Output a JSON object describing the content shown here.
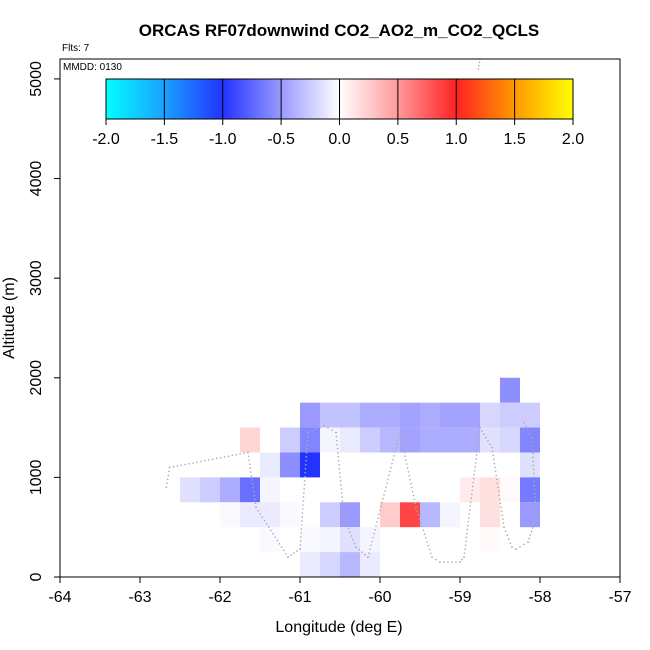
{
  "chart_data": {
    "type": "heatmap",
    "title": "ORCAS RF07downwind CO2_AO2_m_CO2_QCLS",
    "flights_label": "Flts: 7",
    "date_label": "MMDD: 0130",
    "xlabel": "Longitude (deg E)",
    "ylabel": "Altitude (m)",
    "xlim": [
      -64,
      -57
    ],
    "ylim": [
      0,
      5200
    ],
    "xticks": [
      "-64",
      "-63",
      "-62",
      "-61",
      "-60",
      "-59",
      "-58",
      "-57"
    ],
    "yticks": [
      "0",
      "1000",
      "2000",
      "3000",
      "4000",
      "5000"
    ],
    "colorbar": {
      "min": -2.0,
      "max": 2.0,
      "tick_labels": [
        "-2.0",
        "-1.5",
        "-1.0",
        "-0.5",
        "0.0",
        "0.5",
        "1.0",
        "1.5",
        "2.0"
      ],
      "stops": [
        {
          "v": -2.0,
          "color": "#00ffff"
        },
        {
          "v": -1.5,
          "color": "#1aa0ff"
        },
        {
          "v": -1.0,
          "color": "#2233ff"
        },
        {
          "v": -0.5,
          "color": "#9999ff"
        },
        {
          "v": 0.0,
          "color": "#ffffff"
        },
        {
          "v": 0.5,
          "color": "#ff9999"
        },
        {
          "v": 1.0,
          "color": "#ff2222"
        },
        {
          "v": 1.5,
          "color": "#ff9900"
        },
        {
          "v": 2.0,
          "color": "#ffff00"
        }
      ]
    },
    "cell_size": {
      "lon": 0.25,
      "alt": 250
    },
    "cells": [
      {
        "lon": -58.375,
        "alt": 1875,
        "value": -0.55
      },
      {
        "lon": -60.875,
        "alt": 1625,
        "value": -0.5
      },
      {
        "lon": -60.625,
        "alt": 1625,
        "value": -0.3
      },
      {
        "lon": -60.375,
        "alt": 1625,
        "value": -0.3
      },
      {
        "lon": -60.125,
        "alt": 1625,
        "value": -0.4
      },
      {
        "lon": -59.875,
        "alt": 1625,
        "value": -0.4
      },
      {
        "lon": -59.625,
        "alt": 1625,
        "value": -0.45
      },
      {
        "lon": -59.375,
        "alt": 1625,
        "value": -0.4
      },
      {
        "lon": -59.125,
        "alt": 1625,
        "value": -0.45
      },
      {
        "lon": -58.875,
        "alt": 1625,
        "value": -0.45
      },
      {
        "lon": -58.625,
        "alt": 1625,
        "value": -0.2
      },
      {
        "lon": -58.375,
        "alt": 1625,
        "value": -0.25
      },
      {
        "lon": -58.125,
        "alt": 1625,
        "value": -0.25
      },
      {
        "lon": -61.625,
        "alt": 1375,
        "value": 0.2
      },
      {
        "lon": -61.125,
        "alt": 1375,
        "value": -0.25
      },
      {
        "lon": -60.875,
        "alt": 1375,
        "value": -0.6
      },
      {
        "lon": -60.625,
        "alt": 1375,
        "value": -0.05
      },
      {
        "lon": -60.375,
        "alt": 1375,
        "value": -0.1
      },
      {
        "lon": -60.125,
        "alt": 1375,
        "value": -0.25
      },
      {
        "lon": -59.875,
        "alt": 1375,
        "value": -0.35
      },
      {
        "lon": -59.625,
        "alt": 1375,
        "value": -0.45
      },
      {
        "lon": -59.375,
        "alt": 1375,
        "value": -0.4
      },
      {
        "lon": -59.125,
        "alt": 1375,
        "value": -0.4
      },
      {
        "lon": -58.875,
        "alt": 1375,
        "value": -0.4
      },
      {
        "lon": -58.625,
        "alt": 1375,
        "value": -0.15
      },
      {
        "lon": -58.375,
        "alt": 1375,
        "value": -0.2
      },
      {
        "lon": -58.125,
        "alt": 1375,
        "value": -0.6
      },
      {
        "lon": -61.375,
        "alt": 1125,
        "value": -0.1
      },
      {
        "lon": -61.125,
        "alt": 1125,
        "value": -0.55
      },
      {
        "lon": -60.875,
        "alt": 1125,
        "value": -1.0
      },
      {
        "lon": -58.125,
        "alt": 1125,
        "value": -0.15
      },
      {
        "lon": -62.375,
        "alt": 875,
        "value": -0.15
      },
      {
        "lon": -62.125,
        "alt": 875,
        "value": -0.25
      },
      {
        "lon": -61.875,
        "alt": 875,
        "value": -0.4
      },
      {
        "lon": -61.625,
        "alt": 875,
        "value": -0.7
      },
      {
        "lon": -61.375,
        "alt": 875,
        "value": -0.05
      },
      {
        "lon": -58.875,
        "alt": 875,
        "value": 0.1
      },
      {
        "lon": -58.625,
        "alt": 875,
        "value": 0.15
      },
      {
        "lon": -58.375,
        "alt": 875,
        "value": 0.03
      },
      {
        "lon": -58.125,
        "alt": 875,
        "value": -0.65
      },
      {
        "lon": -61.875,
        "alt": 625,
        "value": -0.03
      },
      {
        "lon": -61.625,
        "alt": 625,
        "value": -0.1
      },
      {
        "lon": -61.375,
        "alt": 625,
        "value": -0.1
      },
      {
        "lon": -61.125,
        "alt": 625,
        "value": -0.03
      },
      {
        "lon": -60.625,
        "alt": 625,
        "value": -0.25
      },
      {
        "lon": -60.375,
        "alt": 625,
        "value": -0.5
      },
      {
        "lon": -59.875,
        "alt": 625,
        "value": 0.25
      },
      {
        "lon": -59.625,
        "alt": 625,
        "value": 0.85
      },
      {
        "lon": -59.375,
        "alt": 625,
        "value": -0.35
      },
      {
        "lon": -59.125,
        "alt": 625,
        "value": -0.05
      },
      {
        "lon": -58.625,
        "alt": 625,
        "value": 0.15
      },
      {
        "lon": -58.125,
        "alt": 625,
        "value": -0.5
      },
      {
        "lon": -61.375,
        "alt": 375,
        "value": -0.03
      },
      {
        "lon": -60.875,
        "alt": 375,
        "value": -0.03
      },
      {
        "lon": -60.625,
        "alt": 375,
        "value": -0.05
      },
      {
        "lon": -60.375,
        "alt": 375,
        "value": -0.15
      },
      {
        "lon": -60.125,
        "alt": 375,
        "value": -0.05
      },
      {
        "lon": -58.625,
        "alt": 375,
        "value": 0.03
      },
      {
        "lon": -60.875,
        "alt": 125,
        "value": -0.1
      },
      {
        "lon": -60.625,
        "alt": 125,
        "value": -0.2
      },
      {
        "lon": -60.375,
        "alt": 125,
        "value": -0.35
      },
      {
        "lon": -60.125,
        "alt": 125,
        "value": -0.1
      }
    ],
    "flight_track": [
      [
        -62.67,
        900
      ],
      [
        -62.63,
        1100
      ],
      [
        -61.65,
        1250
      ],
      [
        -61.55,
        700
      ],
      [
        -61.15,
        200
      ],
      [
        -61.0,
        280
      ],
      [
        -60.9,
        1450
      ],
      [
        -60.7,
        1520
      ],
      [
        -60.55,
        1450
      ],
      [
        -60.45,
        600
      ],
      [
        -60.3,
        300
      ],
      [
        -60.15,
        200
      ],
      [
        -59.75,
        1450
      ],
      [
        -59.55,
        700
      ],
      [
        -59.35,
        200
      ],
      [
        -59.25,
        150
      ],
      [
        -59.0,
        150
      ],
      [
        -58.95,
        200
      ],
      [
        -58.75,
        1500
      ],
      [
        -58.6,
        1300
      ],
      [
        -58.45,
        500
      ],
      [
        -58.35,
        300
      ],
      [
        -58.3,
        280
      ],
      [
        -58.15,
        350
      ],
      [
        -58.05,
        600
      ],
      [
        -58.1,
        1400
      ],
      [
        -58.2,
        1550
      ]
    ],
    "flight_track_top": [
      [
        -58.77,
        5100
      ],
      [
        -58.75,
        5200
      ]
    ]
  }
}
